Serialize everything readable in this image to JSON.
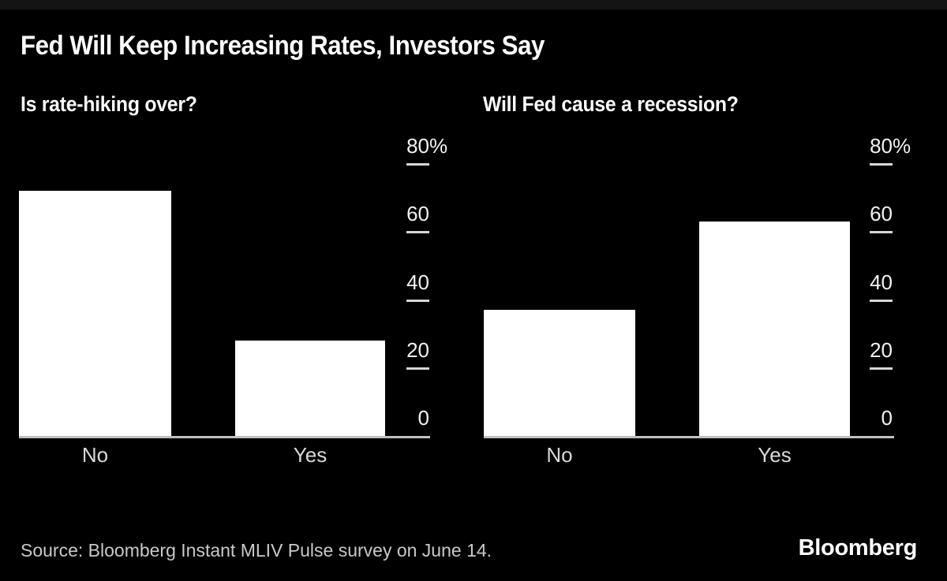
{
  "header": {
    "title": "Fed Will Keep Increasing Rates, Investors Say"
  },
  "footer": {
    "source": "Source: Bloomberg Instant MLIV Pulse survey on June 14.",
    "logo": "Bloomberg"
  },
  "colors": {
    "background": "#000000",
    "bar": "#ffffff",
    "axis_line": "#c0c0c0",
    "tick_dash": "#d6d6d6",
    "tick_label": "#f2f2f2",
    "category_label": "#d9d9d9",
    "source_text": "#c9c9c9"
  },
  "chart_data": [
    {
      "type": "bar",
      "title": "Is rate-hiking over?",
      "categories": [
        "No",
        "Yes"
      ],
      "values": [
        72,
        28
      ],
      "unit": "%",
      "ylim": [
        0,
        80
      ],
      "yticks": [
        {
          "value": 80,
          "label": "80%"
        },
        {
          "value": 60,
          "label": "60"
        },
        {
          "value": 40,
          "label": "40"
        },
        {
          "value": 20,
          "label": "20"
        },
        {
          "value": 0,
          "label": "0"
        }
      ],
      "axis_side": "right",
      "grid": false,
      "legend_position": "none",
      "bar_color": "#ffffff"
    },
    {
      "type": "bar",
      "title": "Will Fed cause a recession?",
      "categories": [
        "No",
        "Yes"
      ],
      "values": [
        37,
        63
      ],
      "unit": "%",
      "ylim": [
        0,
        80
      ],
      "yticks": [
        {
          "value": 80,
          "label": "80%"
        },
        {
          "value": 60,
          "label": "60"
        },
        {
          "value": 40,
          "label": "40"
        },
        {
          "value": 20,
          "label": "20"
        },
        {
          "value": 0,
          "label": "0"
        }
      ],
      "axis_side": "right",
      "grid": false,
      "legend_position": "none",
      "bar_color": "#ffffff"
    }
  ]
}
